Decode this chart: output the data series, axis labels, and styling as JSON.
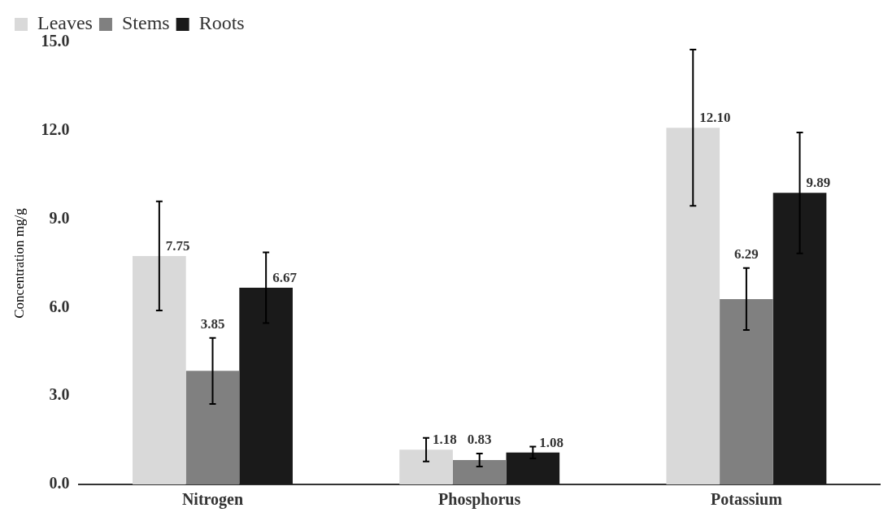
{
  "chart_data": {
    "type": "bar",
    "ylabel": "Concentration mg/g",
    "categories": [
      "Nitrogen",
      "Phosphorus",
      "Potassium"
    ],
    "series": [
      {
        "name": "Leaves",
        "color": "#d9d9d9",
        "values": [
          7.75,
          1.18,
          12.1
        ],
        "errors": [
          1.85,
          0.4,
          2.65
        ],
        "value_labels": [
          "7.75",
          "1.18",
          "12.10"
        ]
      },
      {
        "name": "Stems",
        "color": "#808080",
        "values": [
          3.85,
          0.83,
          6.29
        ],
        "errors": [
          1.12,
          0.22,
          1.05
        ],
        "value_labels": [
          "3.85",
          "0.83",
          "6.29"
        ]
      },
      {
        "name": "Roots",
        "color": "#1a1a1a",
        "values": [
          6.67,
          1.08,
          9.89
        ],
        "errors": [
          1.2,
          0.2,
          2.05
        ],
        "value_labels": [
          "6.67",
          "1.08",
          "9.89"
        ]
      }
    ],
    "ylim": [
      0,
      15
    ],
    "yticks": [
      {
        "value": 0,
        "label": "0.0"
      },
      {
        "value": 3,
        "label": "3.0"
      },
      {
        "value": 6,
        "label": "6.0"
      },
      {
        "value": 9,
        "label": "9.0"
      },
      {
        "value": 12,
        "label": "12.0"
      },
      {
        "value": 15,
        "label": "15.0"
      }
    ],
    "grid": false,
    "legend": "top left"
  }
}
